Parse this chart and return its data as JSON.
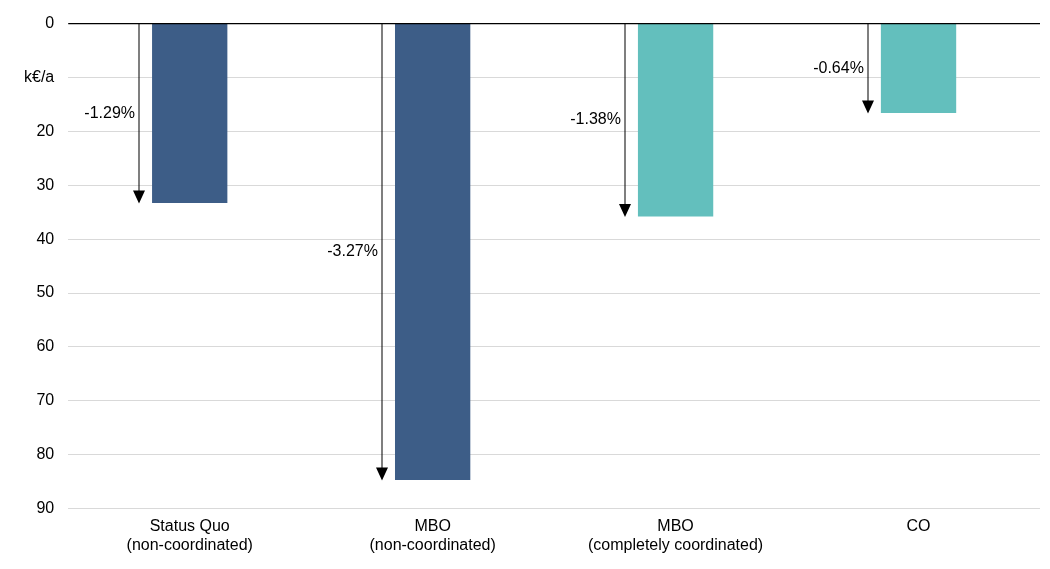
{
  "chart_data": {
    "type": "bar",
    "categories": [
      "Status Quo\n(non-coordinated)",
      "MBO\n(non-coordinated)",
      "MBO\n(completely coordinated)",
      "CO"
    ],
    "values": [
      33.3,
      84.7,
      35.8,
      16.6
    ],
    "colors": [
      "#3d5d87",
      "#3d5d87",
      "#63bfbd",
      "#63bfbd"
    ],
    "ylim": [
      90,
      0
    ],
    "yticks": [
      0,
      {
        "value": 10,
        "label": "k€/a"
      },
      20,
      30,
      40,
      50,
      60,
      70,
      80,
      90
    ],
    "grid": "y",
    "legend": false,
    "annotations": [
      "-1.29%",
      "-3.27%",
      "-1.38%",
      "-0.64%"
    ]
  }
}
